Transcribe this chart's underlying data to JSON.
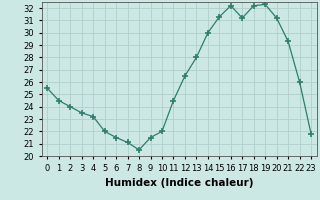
{
  "x": [
    0,
    1,
    2,
    3,
    4,
    5,
    6,
    7,
    8,
    9,
    10,
    11,
    12,
    13,
    14,
    15,
    16,
    17,
    18,
    19,
    20,
    21,
    22,
    23
  ],
  "y": [
    25.5,
    24.5,
    24.0,
    23.5,
    23.2,
    22.0,
    21.5,
    21.1,
    20.5,
    21.5,
    22.0,
    24.5,
    26.5,
    28.0,
    30.0,
    31.3,
    32.2,
    31.2,
    32.2,
    32.3,
    31.2,
    29.3,
    26.0,
    21.8
  ],
  "line_color": "#2e7d6e",
  "marker": "+",
  "marker_size": 4,
  "bg_color": "#cce8e4",
  "grid_color": "#b0d0cc",
  "xlabel": "Humidex (Indice chaleur)",
  "ylim": [
    20,
    32.5
  ],
  "xlim": [
    -0.5,
    23.5
  ],
  "yticks": [
    20,
    21,
    22,
    23,
    24,
    25,
    26,
    27,
    28,
    29,
    30,
    31,
    32
  ],
  "xticks": [
    0,
    1,
    2,
    3,
    4,
    5,
    6,
    7,
    8,
    9,
    10,
    11,
    12,
    13,
    14,
    15,
    16,
    17,
    18,
    19,
    20,
    21,
    22,
    23
  ],
  "xtick_labels": [
    "0",
    "1",
    "2",
    "3",
    "4",
    "5",
    "6",
    "7",
    "8",
    "9",
    "10",
    "11",
    "12",
    "13",
    "14",
    "15",
    "16",
    "17",
    "18",
    "19",
    "20",
    "21",
    "22",
    "23"
  ],
  "tick_fontsize": 6,
  "label_fontsize": 7.5
}
